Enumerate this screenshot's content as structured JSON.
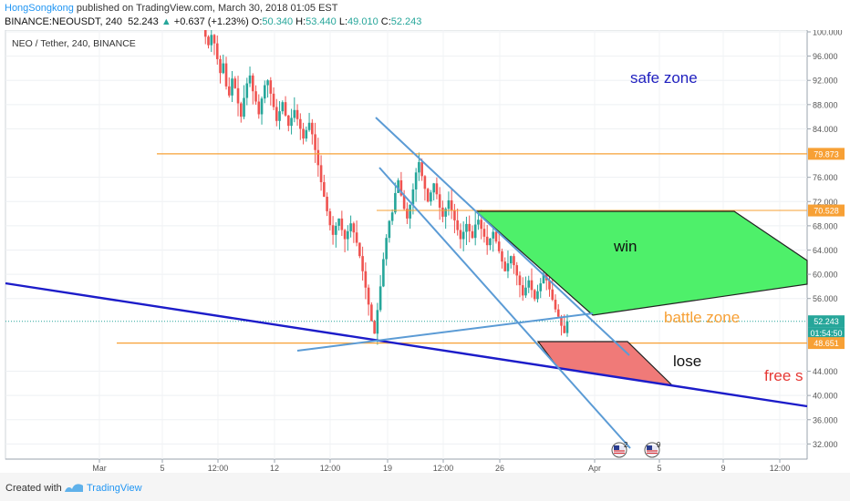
{
  "header": {
    "user": "HongSongkong",
    "published_text": " published on TradingView.com, March 30, 2018 01:05 EST",
    "symbol": "BINANCE:NEOUSDT, 240",
    "last": "52.243",
    "change_arrow": "▲",
    "change": "+0.637 (+1.23%)",
    "ohlc": [
      {
        "label": "O:",
        "value": "50.340"
      },
      {
        "label": "H:",
        "value": "53.440"
      },
      {
        "label": "L:",
        "value": "49.010"
      },
      {
        "label": "C:",
        "value": "52.243"
      }
    ]
  },
  "chart_title": "NEO / Tether, 240, BINANCE",
  "chart_data": {
    "type": "candlestick",
    "symbol": "NEO / Tether, 240, BINANCE",
    "x_tick_labels": [
      "Mar",
      "5",
      "12:00",
      "12",
      "12:00",
      "19",
      "12:00",
      "26",
      "Apr",
      "5",
      "9",
      "12:00"
    ],
    "y_tick_labels": [
      "100.000",
      "96.000",
      "92.000",
      "88.000",
      "84.000",
      "76.000",
      "72.000",
      "68.000",
      "64.000",
      "60.000",
      "56.000",
      "44.000",
      "40.000",
      "36.000",
      "32.000"
    ],
    "ylim": [
      29.5,
      100.3
    ],
    "y_ticks": [
      100,
      96,
      92,
      88,
      84,
      76,
      72,
      68,
      64,
      60,
      56,
      44,
      40,
      36,
      32
    ],
    "price_labels": [
      {
        "value": 79.873,
        "text": "79.873",
        "color": "#f7a035"
      },
      {
        "value": 70.528,
        "text": "70.528",
        "color": "#f7a035"
      },
      {
        "value": 52.243,
        "text": "52.243",
        "color": "#26a69a"
      },
      {
        "value": 50.3,
        "text": "01:54:50",
        "color": "#26a69a"
      },
      {
        "value": 48.651,
        "text": "48.651",
        "color": "#f7a035"
      }
    ],
    "horizontal_levels": [
      79.873,
      70.528,
      48.651
    ],
    "last_price": 52.243,
    "annotations": [
      {
        "text": "safe zone",
        "color": "#1f1fbf"
      },
      {
        "text": "win",
        "color": "#111111"
      },
      {
        "text": "battle zone",
        "color": "#f7a035"
      },
      {
        "text": "lose",
        "color": "#111111"
      },
      {
        "text": "free s",
        "color": "#e53935"
      }
    ],
    "candle_series": [
      100.5,
      99.2,
      97.8,
      99.5,
      98.1,
      95.5,
      93.2,
      94.8,
      91.0,
      89.5,
      92.3,
      90.7,
      88.2,
      86.0,
      89.1,
      91.5,
      92.8,
      90.2,
      88.5,
      86.4,
      89.0,
      91.2,
      92.0,
      89.8,
      87.6,
      85.3,
      86.9,
      88.4,
      86.2,
      84.5,
      85.8,
      87.1,
      85.6,
      84.0,
      82.4,
      83.8,
      85.0,
      83.1,
      80.5,
      78.0,
      75.2,
      72.8,
      70.4,
      68.1,
      66.5,
      68.0,
      69.2,
      67.3,
      65.8,
      67.1,
      68.4,
      66.9,
      65.2,
      63.0,
      60.5,
      57.8,
      55.0,
      52.3,
      50.2,
      54.1,
      58.0,
      62.5,
      66.0,
      68.8,
      70.2,
      73.4,
      75.5,
      73.0,
      70.8,
      69.2,
      71.5,
      74.0,
      76.8,
      78.5,
      76.2,
      74.1,
      72.0,
      73.5,
      75.0,
      73.2,
      71.0,
      69.5,
      70.8,
      72.2,
      70.6,
      68.9,
      67.3,
      65.8,
      67.0,
      68.3,
      67.1,
      66.0,
      68.2,
      69.0,
      67.5,
      66.2,
      64.8,
      65.9,
      67.0,
      65.4,
      63.8,
      62.1,
      60.5,
      61.8,
      63.0,
      61.5,
      59.8,
      58.2,
      56.5,
      57.8,
      59.0,
      57.4,
      55.9,
      57.2,
      58.5,
      60.1,
      59.0,
      57.5,
      55.8,
      54.2,
      53.0,
      51.5,
      50.3,
      52.243
    ]
  },
  "icons": [
    {
      "name": "us-flag-event-icon",
      "badge": "2"
    },
    {
      "name": "us-flag-event-icon",
      "badge": "9"
    }
  ],
  "footer": {
    "created_with": "Created with",
    "brand": "TradingView"
  },
  "colors": {
    "candle_up": "#26a69a",
    "candle_down": "#ef5350",
    "channel": "#5b9bd5",
    "trend": "#1c1cc9",
    "level": "#f7a035",
    "win_zone": "#4ef06a",
    "lose_zone": "#f07a78"
  }
}
